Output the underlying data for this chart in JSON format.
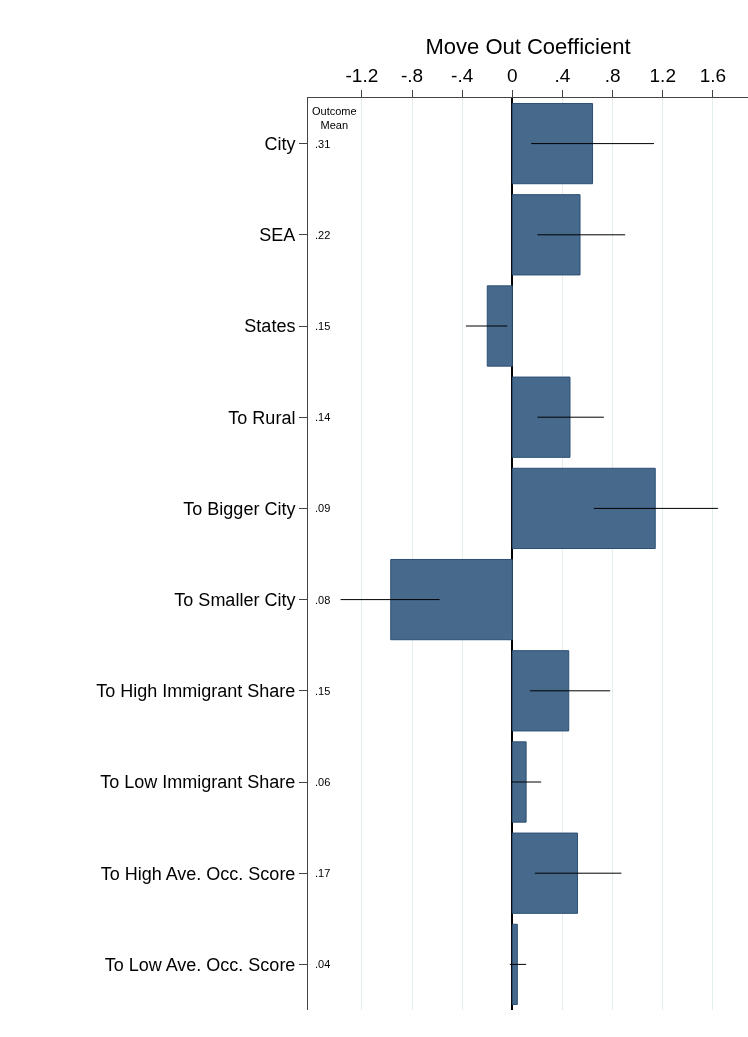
{
  "chart_data": {
    "type": "bar",
    "orientation": "horizontal",
    "xlabel": "Move Out Coefficient",
    "categories": [
      "City",
      "SEA",
      "States",
      "To Rural",
      "To Bigger City",
      "To Smaller City",
      "To High Immigrant Share",
      "To Low Immigrant Share",
      "To High Ave. Occ. Score",
      "To Low Ave. Occ. Score"
    ],
    "values": [
      0.64,
      0.54,
      -0.2,
      0.46,
      1.14,
      -0.97,
      0.45,
      0.11,
      0.52,
      0.04
    ],
    "errors": [
      [
        0.15,
        1.13
      ],
      [
        0.2,
        0.9
      ],
      [
        -0.37,
        -0.04
      ],
      [
        0.2,
        0.73
      ],
      [
        0.65,
        1.64
      ],
      [
        -1.37,
        -0.58
      ],
      [
        0.14,
        0.78
      ],
      [
        -0.01,
        0.23
      ],
      [
        0.18,
        0.87
      ],
      [
        -0.02,
        0.11
      ]
    ],
    "color": "#476a8c",
    "xlim": [
      -1.63,
      1.88
    ],
    "xticks": [
      {
        "value": -1.2,
        "label": "-1.2"
      },
      {
        "value": -0.8,
        "label": "-.8"
      },
      {
        "value": -0.4,
        "label": "-.4"
      },
      0,
      {
        "value": 0.4,
        "label": ".4"
      },
      {
        "value": 0.8,
        "label": ".8"
      },
      1.2,
      1.6
    ],
    "grid": "x",
    "legend": false,
    "annotations": [
      "Outcome Mean",
      ".31",
      ".22",
      ".15",
      ".14",
      ".09",
      ".08",
      ".15",
      ".06",
      ".17",
      ".04"
    ]
  }
}
